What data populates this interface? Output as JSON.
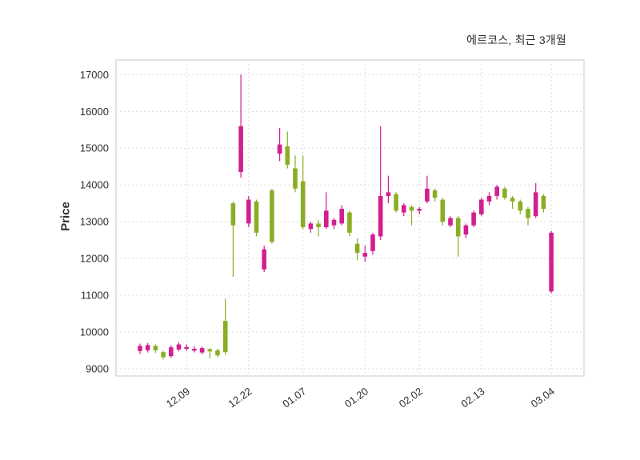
{
  "chart_data": {
    "type": "candlestick",
    "title": "에르코스, 최근 3개월",
    "ylabel": "Price",
    "y_ticks": [
      9000,
      10000,
      11000,
      12000,
      13000,
      14000,
      15000,
      16000,
      17000
    ],
    "ylim": [
      8800,
      17400
    ],
    "x_tick_labels": [
      "12.09",
      "12.22",
      "01.07",
      "01.20",
      "02.02",
      "02.13",
      "03.04"
    ],
    "x_tick_indices": [
      6,
      14,
      21,
      29,
      36,
      44,
      53
    ],
    "grid": true,
    "up_color": "#d11f8f",
    "down_color": "#8aae23",
    "grid_color": "#dcdcdc",
    "border_color": "#c9c9c9",
    "tick_label_color": "#303030",
    "candles_ohlc": [
      [
        9480,
        9680,
        9400,
        9620
      ],
      [
        9500,
        9700,
        9440,
        9640
      ],
      [
        9620,
        9660,
        9430,
        9500
      ],
      [
        9450,
        9490,
        9250,
        9310
      ],
      [
        9340,
        9640,
        9300,
        9580
      ],
      [
        9520,
        9720,
        9470,
        9660
      ],
      [
        9540,
        9660,
        9480,
        9590
      ],
      [
        9490,
        9610,
        9440,
        9540
      ],
      [
        9440,
        9600,
        9390,
        9560
      ],
      [
        9530,
        9560,
        9280,
        9470
      ],
      [
        9500,
        9540,
        9310,
        9360
      ],
      [
        10300,
        10900,
        9380,
        9450
      ],
      [
        13500,
        13550,
        11500,
        12900
      ],
      [
        14350,
        17000,
        14200,
        15600
      ],
      [
        12950,
        13700,
        12850,
        13600
      ],
      [
        13550,
        13600,
        12600,
        12700
      ],
      [
        11700,
        12350,
        11630,
        12250
      ],
      [
        13850,
        13900,
        12400,
        12450
      ],
      [
        14850,
        15550,
        14650,
        15100
      ],
      [
        15050,
        15450,
        14450,
        14550
      ],
      [
        14450,
        14800,
        13800,
        13900
      ],
      [
        14100,
        14800,
        12800,
        12850
      ],
      [
        12800,
        13000,
        12700,
        12950
      ],
      [
        12950,
        13050,
        12600,
        12850
      ],
      [
        12850,
        13800,
        12800,
        13300
      ],
      [
        12900,
        13100,
        12800,
        13050
      ],
      [
        12950,
        13450,
        12900,
        13350
      ],
      [
        13250,
        13300,
        12600,
        12700
      ],
      [
        12400,
        12550,
        11950,
        12150
      ],
      [
        12050,
        12350,
        11900,
        12150
      ],
      [
        12200,
        12700,
        12100,
        12650
      ],
      [
        12600,
        15600,
        12500,
        13700
      ],
      [
        13700,
        14250,
        13500,
        13800
      ],
      [
        13750,
        13800,
        13250,
        13300
      ],
      [
        13250,
        13500,
        13150,
        13450
      ],
      [
        13400,
        13450,
        12900,
        13300
      ],
      [
        13300,
        13400,
        13200,
        13350
      ],
      [
        13550,
        14250,
        13500,
        13900
      ],
      [
        13850,
        13900,
        13550,
        13650
      ],
      [
        13600,
        13650,
        12900,
        13000
      ],
      [
        12900,
        13150,
        12850,
        13100
      ],
      [
        13100,
        13150,
        12050,
        12600
      ],
      [
        12650,
        12950,
        12550,
        12900
      ],
      [
        12900,
        13300,
        12850,
        13250
      ],
      [
        13200,
        13650,
        13150,
        13600
      ],
      [
        13550,
        13800,
        13450,
        13700
      ],
      [
        13700,
        14000,
        13600,
        13950
      ],
      [
        13900,
        13950,
        13600,
        13650
      ],
      [
        13650,
        13700,
        13350,
        13550
      ],
      [
        13550,
        13600,
        13200,
        13300
      ],
      [
        13350,
        13400,
        12900,
        13100
      ],
      [
        13150,
        14050,
        13100,
        13800
      ],
      [
        13700,
        13750,
        13250,
        13350
      ],
      [
        11100,
        12750,
        11050,
        12700
      ]
    ]
  }
}
